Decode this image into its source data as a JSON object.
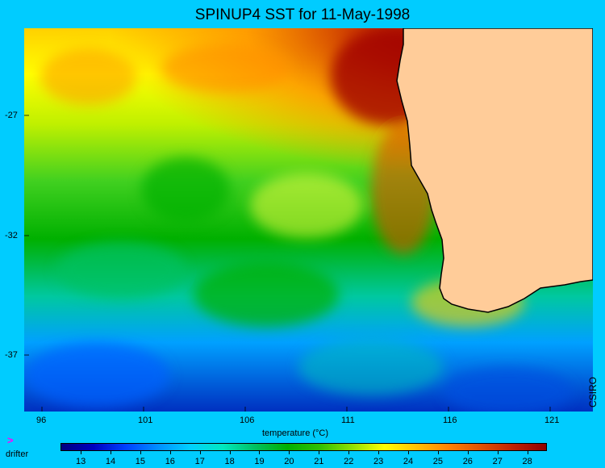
{
  "title": "SPINUP4 SST for 11-May-1998",
  "map": {
    "lon_ticks": [
      "96",
      "101",
      "106",
      "111",
      "116",
      "121"
    ],
    "lat_ticks": [
      "-27",
      "-32",
      "-37"
    ],
    "xlabel": "temperature (°C)",
    "watermark": "CSIRO",
    "land_color": "#ffcc99",
    "coast_color": "#000000"
  },
  "legend": {
    "drifter_icon": ">",
    "drifter_label": "drifter"
  },
  "colorbar": {
    "labels": [
      "13",
      "14",
      "15",
      "16",
      "17",
      "18",
      "19",
      "20",
      "21",
      "22",
      "23",
      "24",
      "25",
      "26",
      "27",
      "28"
    ],
    "colors": [
      "#000080",
      "#0000c0",
      "#0040ff",
      "#0090ff",
      "#00d0ff",
      "#00e8c0",
      "#00c060",
      "#00b000",
      "#30c000",
      "#90e000",
      "#ffff00",
      "#ffc000",
      "#ff8000",
      "#e05000",
      "#c02000",
      "#900000"
    ]
  }
}
